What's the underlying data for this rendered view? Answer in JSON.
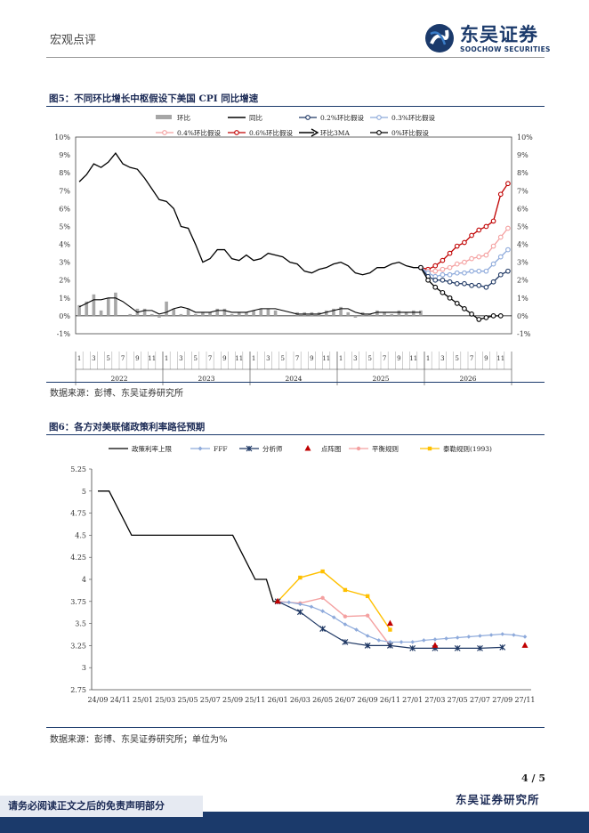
{
  "header": {
    "tag": "宏观点评",
    "logo_cn": "东吴证券",
    "logo_en": "SOOCHOW SECURITIES",
    "brand_color": "#1b3a6b"
  },
  "fig5": {
    "title": "图5：不同环比增长中枢假设下美国 CPI 同比增速",
    "source": "数据来源：彭博、东吴证券研究所"
  },
  "fig6": {
    "title": "图6：各方对美联储政策利率路径预期",
    "source": "数据来源：彭博、东吴证券研究所；单位为%"
  },
  "footer": {
    "page": "4 / 5",
    "org": "东吴证券研究所",
    "disclaimer": "请务必阅读正文之后的免责声明部分"
  },
  "chart_data": [
    {
      "type": "line",
      "title": "图5：不同环比增长中枢假设下美国 CPI 同比增速",
      "ylim": [
        -1,
        10
      ],
      "y_ticks": [
        "-1%",
        "0%",
        "1%",
        "2%",
        "3%",
        "4%",
        "5%",
        "6%",
        "7%",
        "8%",
        "9%",
        "10%"
      ],
      "years": [
        "2022",
        "2023",
        "2024",
        "2025",
        "2026"
      ],
      "month_ticks": [
        "1",
        "3",
        "5",
        "7",
        "9",
        "11"
      ],
      "legend": [
        "环比",
        "同比",
        "0.2%环比假设",
        "0.3%环比假设",
        "0.4%环比假设",
        "0.6%环比假设",
        "环比3MA",
        "0%环比假设"
      ],
      "colors": {
        "mom": "#a6a6a6",
        "yoy": "#000000",
        "s02": "#1f3864",
        "s03": "#8eaadb",
        "s04": "#f4a0a0",
        "s06": "#c00000",
        "ma3": "#000000",
        "s00": "#000000"
      },
      "series": {
        "mom": [
          0.6,
          0.8,
          1.2,
          0.3,
          1.0,
          1.3,
          0.0,
          0.1,
          0.4,
          0.4,
          0.1,
          -0.1,
          0.8,
          0.4,
          0.1,
          0.4,
          0.1,
          0.2,
          0.2,
          0.4,
          0.4,
          0.1,
          0.2,
          0.2,
          0.3,
          0.4,
          0.4,
          0.3,
          0.0,
          0.0,
          0.2,
          0.2,
          0.2,
          0.2,
          0.3,
          0.4,
          0.5,
          0.2,
          -0.1,
          0.2,
          0.1,
          0.3,
          0.2,
          0.1,
          0.3,
          0.2,
          0.3,
          0.3
        ],
        "yoy": [
          7.5,
          7.9,
          8.5,
          8.3,
          8.6,
          9.1,
          8.5,
          8.3,
          8.2,
          7.7,
          7.1,
          6.5,
          6.4,
          6.0,
          5.0,
          4.9,
          4.0,
          3.0,
          3.2,
          3.7,
          3.7,
          3.2,
          3.1,
          3.4,
          3.1,
          3.2,
          3.5,
          3.4,
          3.3,
          3.0,
          2.9,
          2.5,
          2.4,
          2.6,
          2.7,
          2.9,
          3.0,
          2.8,
          2.4,
          2.3,
          2.4,
          2.7,
          2.7,
          2.9,
          3.0,
          2.8,
          2.7,
          2.7
        ],
        "ma3": [
          0.5,
          0.7,
          0.9,
          0.9,
          1.0,
          1.0,
          0.8,
          0.5,
          0.2,
          0.3,
          0.3,
          0.1,
          0.2,
          0.4,
          0.5,
          0.4,
          0.2,
          0.2,
          0.2,
          0.3,
          0.3,
          0.2,
          0.2,
          0.2,
          0.3,
          0.4,
          0.4,
          0.4,
          0.3,
          0.2,
          0.1,
          0.1,
          0.1,
          0.1,
          0.2,
          0.3,
          0.4,
          0.4,
          0.2,
          0.1,
          0.1,
          0.2,
          0.2,
          0.2,
          0.2,
          0.2,
          0.2,
          0.2
        ],
        "s00": [
          2.7,
          2.0,
          1.6,
          1.3,
          1.0,
          0.7,
          0.4,
          0.1,
          -0.2,
          -0.1,
          0.0,
          0.0
        ],
        "s02": [
          2.7,
          2.2,
          2.0,
          2.0,
          1.9,
          1.8,
          1.8,
          1.7,
          1.7,
          1.6,
          1.9,
          2.3,
          2.5
        ],
        "s03": [
          2.7,
          2.4,
          2.2,
          2.3,
          2.3,
          2.4,
          2.4,
          2.5,
          2.5,
          2.5,
          2.9,
          3.3,
          3.7
        ],
        "s04": [
          2.7,
          2.5,
          2.5,
          2.6,
          2.7,
          2.9,
          3.0,
          3.2,
          3.3,
          3.4,
          3.9,
          4.4,
          4.9
        ],
        "s06": [
          2.7,
          2.6,
          2.8,
          3.1,
          3.5,
          3.9,
          4.1,
          4.5,
          4.8,
          5.0,
          5.3,
          6.8,
          7.4
        ]
      }
    },
    {
      "type": "line",
      "title": "图6：各方对美联储政策利率路径预期",
      "ylim": [
        2.75,
        5.25
      ],
      "y_ticks": [
        "2.75",
        "3",
        "3.25",
        "3.5",
        "3.75",
        "4",
        "4.25",
        "4.5",
        "4.75",
        "5",
        "5.25"
      ],
      "categories": [
        "24/09",
        "24/11",
        "25/01",
        "25/03",
        "25/05",
        "25/07",
        "25/09",
        "25/11",
        "26/01",
        "26/03",
        "26/05",
        "26/07",
        "26/09",
        "26/11",
        "27/01",
        "27/03",
        "27/05",
        "27/07",
        "27/09",
        "27/11"
      ],
      "legend": [
        "政策利率上限",
        "FFF",
        "分析师",
        "点阵图",
        "平衡规则",
        "泰勒规则(1993)"
      ],
      "colors": {
        "policy": "#000000",
        "fff": "#8eaadb",
        "analyst": "#1f3864",
        "dot": "#c00000",
        "balanced": "#f4a0a0",
        "taylor": "#ffc000"
      },
      "series": {
        "policy": [
          [
            0,
            5.0
          ],
          [
            0.5,
            5.0
          ],
          [
            1,
            4.75
          ],
          [
            1.5,
            4.5
          ],
          [
            2,
            4.5
          ],
          [
            3,
            4.5
          ],
          [
            4,
            4.5
          ],
          [
            5,
            4.5
          ],
          [
            6,
            4.5
          ],
          [
            6.5,
            4.25
          ],
          [
            7,
            4.0
          ],
          [
            7.5,
            4.0
          ],
          [
            7.8,
            3.75
          ],
          [
            8,
            3.75
          ]
        ],
        "fff": [
          [
            8,
            3.74
          ],
          [
            8.5,
            3.74
          ],
          [
            9,
            3.72
          ],
          [
            9.5,
            3.69
          ],
          [
            10,
            3.64
          ],
          [
            10.5,
            3.57
          ],
          [
            11,
            3.49
          ],
          [
            11.5,
            3.43
          ],
          [
            12,
            3.36
          ],
          [
            12.5,
            3.31
          ],
          [
            13,
            3.29
          ],
          [
            13.5,
            3.29
          ],
          [
            14,
            3.29
          ],
          [
            14.5,
            3.31
          ],
          [
            15,
            3.32
          ],
          [
            15.5,
            3.33
          ],
          [
            16,
            3.34
          ],
          [
            16.5,
            3.35
          ],
          [
            17,
            3.36
          ],
          [
            17.5,
            3.37
          ],
          [
            18,
            3.38
          ],
          [
            18.5,
            3.37
          ],
          [
            19,
            3.35
          ]
        ],
        "analyst": [
          [
            8,
            3.75
          ],
          [
            9,
            3.63
          ],
          [
            10,
            3.44
          ],
          [
            11,
            3.29
          ],
          [
            12,
            3.25
          ],
          [
            13,
            3.25
          ],
          [
            14,
            3.22
          ],
          [
            15,
            3.22
          ],
          [
            16,
            3.22
          ],
          [
            17,
            3.22
          ],
          [
            18,
            3.23
          ]
        ],
        "dot": [
          [
            8,
            3.75
          ],
          [
            13,
            3.5
          ],
          [
            15,
            3.25
          ],
          [
            19,
            3.25
          ]
        ],
        "balanced": [
          [
            8,
            3.75
          ],
          [
            9,
            3.73
          ],
          [
            10,
            3.79
          ],
          [
            11,
            3.58
          ],
          [
            12,
            3.59
          ],
          [
            13,
            3.25
          ]
        ],
        "taylor": [
          [
            8,
            3.75
          ],
          [
            9,
            4.02
          ],
          [
            10,
            4.09
          ],
          [
            11,
            3.88
          ],
          [
            12,
            3.81
          ],
          [
            13,
            3.43
          ]
        ]
      }
    }
  ]
}
